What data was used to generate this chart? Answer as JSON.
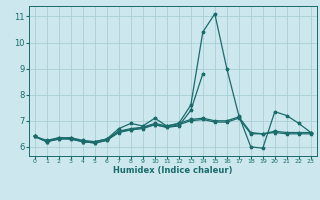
{
  "xlabel": "Humidex (Indice chaleur)",
  "xlim": [
    -0.5,
    23.5
  ],
  "ylim": [
    5.65,
    11.4
  ],
  "yticks": [
    6,
    7,
    8,
    9,
    10,
    11
  ],
  "xticks": [
    0,
    1,
    2,
    3,
    4,
    5,
    6,
    7,
    8,
    9,
    10,
    11,
    12,
    13,
    14,
    15,
    16,
    17,
    18,
    19,
    20,
    21,
    22,
    23
  ],
  "bg_color": "#cce8ee",
  "grid_color": "#aacdd4",
  "line_color": "#1a6b6b",
  "line1": [
    6.4,
    6.2,
    6.3,
    6.3,
    6.2,
    6.2,
    6.3,
    6.7,
    6.9,
    6.8,
    7.1,
    6.8,
    6.9,
    7.6,
    10.4,
    11.1,
    9.0,
    7.2,
    6.0,
    5.95,
    7.35,
    7.2,
    6.9,
    6.55
  ],
  "line2": [
    6.4,
    6.2,
    6.35,
    6.3,
    6.2,
    6.15,
    6.25,
    6.55,
    6.65,
    6.7,
    6.85,
    6.75,
    6.8,
    7.4,
    8.8,
    null,
    null,
    null,
    null,
    null,
    null,
    null,
    null,
    null
  ],
  "line3": [
    6.4,
    6.25,
    6.35,
    6.35,
    6.25,
    6.2,
    6.3,
    6.6,
    6.7,
    6.75,
    6.9,
    6.8,
    6.9,
    7.05,
    7.1,
    7.0,
    7.0,
    7.15,
    6.55,
    6.5,
    6.6,
    6.55,
    6.55,
    6.55
  ],
  "line4": [
    6.4,
    6.2,
    6.3,
    6.35,
    6.2,
    6.15,
    6.25,
    6.6,
    6.65,
    6.75,
    6.85,
    6.75,
    6.85,
    7.0,
    7.05,
    6.95,
    6.95,
    7.1,
    6.5,
    6.5,
    6.55,
    6.5,
    6.5,
    6.5
  ]
}
